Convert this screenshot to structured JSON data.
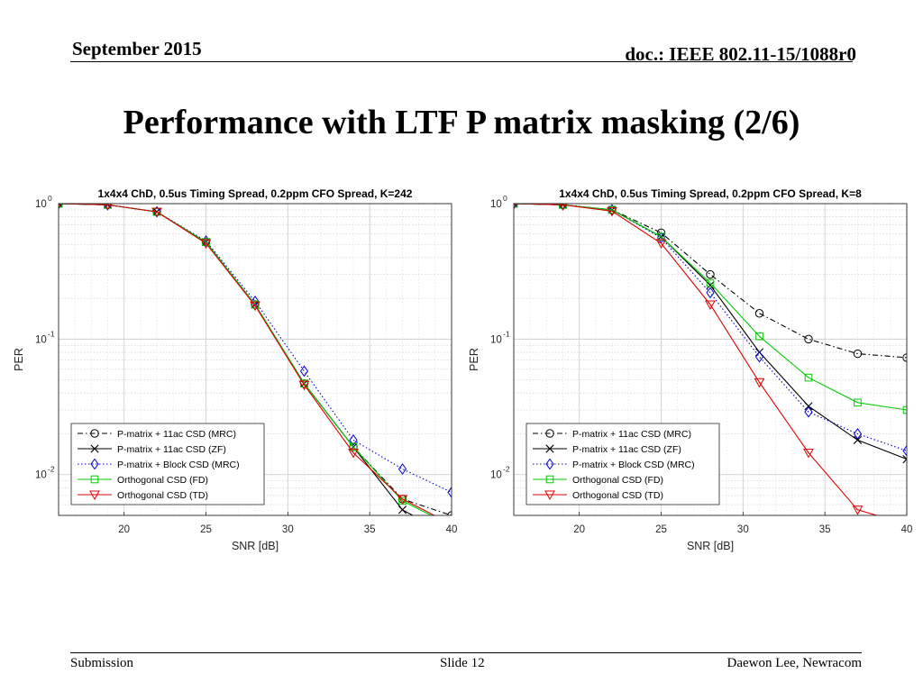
{
  "header": {
    "date": "September 2015",
    "doc": "doc.: IEEE 802.11-15/1088r0"
  },
  "slide_title": "Performance with LTF P matrix masking (2/6)",
  "footer": {
    "left": "Submission",
    "center": "Slide 12",
    "right": "Daewon Lee, Newracom"
  },
  "colors": {
    "mrc11ac": "#000000",
    "zf11ac": "#000000",
    "block": "#0000cc",
    "fd": "#00cc00",
    "td": "#dd0000"
  },
  "chart_data": [
    {
      "type": "line",
      "title": "1x4x4 ChD, 0.5us Timing Spread, 0.2ppm CFO Spread, K=242",
      "xlabel": "SNR [dB]",
      "ylabel": "PER",
      "yscale": "log",
      "xlim": [
        16,
        40
      ],
      "ylim": [
        0.005,
        1
      ],
      "xticks": [
        "20",
        "25",
        "30",
        "35",
        "40"
      ],
      "yticks": [
        {
          "base": "10",
          "exp": "0"
        },
        {
          "base": "10",
          "exp": "-1"
        },
        {
          "base": "10",
          "exp": "-2"
        }
      ],
      "grid": true,
      "legend_position": "bottom-left",
      "x": [
        16,
        19,
        22,
        25,
        28,
        31,
        34,
        37,
        40
      ],
      "series": [
        {
          "name": "P-matrix + 11ac CSD (MRC)",
          "color": "#000000",
          "dash": "6,3,1.5,3",
          "marker": "circle",
          "values": [
            1.0,
            0.98,
            0.87,
            0.52,
            0.18,
            0.047,
            0.016,
            0.0066,
            0.005
          ]
        },
        {
          "name": "P-matrix + 11ac CSD (ZF)",
          "color": "#000000",
          "dash": "",
          "marker": "x",
          "values": [
            1.0,
            0.98,
            0.87,
            0.52,
            0.18,
            0.047,
            0.016,
            0.0055,
            0.0035
          ]
        },
        {
          "name": "P-matrix + Block CSD (MRC)",
          "color": "#0000cc",
          "dash": "1.5,2.5",
          "marker": "diamond",
          "values": [
            1.0,
            0.98,
            0.87,
            0.53,
            0.19,
            0.058,
            0.018,
            0.011,
            0.0074
          ]
        },
        {
          "name": "Orthogonal CSD (FD)",
          "color": "#00cc00",
          "dash": "",
          "marker": "square",
          "values": [
            1.0,
            0.98,
            0.87,
            0.52,
            0.18,
            0.047,
            0.016,
            0.0064,
            0.0042
          ]
        },
        {
          "name": "Orthogonal CSD (TD)",
          "color": "#dd0000",
          "dash": "",
          "marker": "triangle-down",
          "values": [
            1.0,
            0.98,
            0.87,
            0.51,
            0.177,
            0.046,
            0.0145,
            0.0066,
            0.0043
          ]
        }
      ]
    },
    {
      "type": "line",
      "title": "1x4x4 ChD, 0.5us Timing Spread, 0.2ppm CFO Spread, K=8",
      "xlabel": "SNR [dB]",
      "ylabel": "PER",
      "yscale": "log",
      "xlim": [
        16,
        40
      ],
      "ylim": [
        0.005,
        1
      ],
      "xticks": [
        "20",
        "25",
        "30",
        "35",
        "40"
      ],
      "yticks": [
        {
          "base": "10",
          "exp": "0"
        },
        {
          "base": "10",
          "exp": "-1"
        },
        {
          "base": "10",
          "exp": "-2"
        }
      ],
      "grid": true,
      "legend_position": "bottom-left",
      "x": [
        16,
        19,
        22,
        25,
        28,
        31,
        34,
        37,
        40
      ],
      "series": [
        {
          "name": "P-matrix + 11ac CSD (MRC)",
          "color": "#000000",
          "dash": "6,3,1.5,3",
          "marker": "circle",
          "values": [
            1.0,
            0.98,
            0.9,
            0.61,
            0.3,
            0.155,
            0.1,
            0.078,
            0.073
          ]
        },
        {
          "name": "P-matrix + 11ac CSD (ZF)",
          "color": "#000000",
          "dash": "",
          "marker": "x",
          "values": [
            1.0,
            0.98,
            0.9,
            0.57,
            0.25,
            0.08,
            0.032,
            0.018,
            0.013
          ]
        },
        {
          "name": "P-matrix + Block CSD (MRC)",
          "color": "#0000cc",
          "dash": "1.5,2.5",
          "marker": "diamond",
          "values": [
            1.0,
            0.98,
            0.9,
            0.56,
            0.22,
            0.074,
            0.029,
            0.02,
            0.015
          ]
        },
        {
          "name": "Orthogonal CSD (FD)",
          "color": "#00cc00",
          "dash": "",
          "marker": "square",
          "values": [
            1.0,
            0.98,
            0.9,
            0.57,
            0.26,
            0.105,
            0.052,
            0.034,
            0.03
          ]
        },
        {
          "name": "Orthogonal CSD (TD)",
          "color": "#dd0000",
          "dash": "",
          "marker": "triangle-down",
          "values": [
            1.0,
            0.98,
            0.88,
            0.51,
            0.18,
            0.048,
            0.0145,
            0.0055,
            0.0043
          ]
        }
      ]
    }
  ]
}
